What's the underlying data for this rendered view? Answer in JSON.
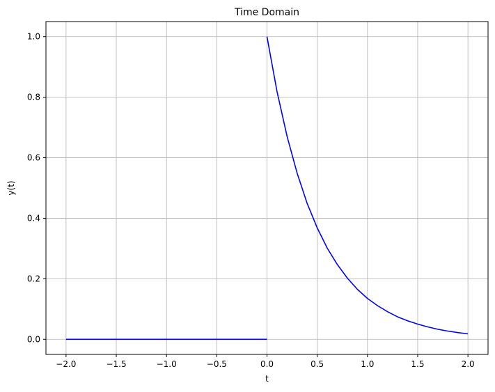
{
  "chart_data": {
    "type": "line",
    "title": "Time Domain",
    "xlabel": "t",
    "ylabel": "y(t)",
    "xlim": [
      -2.2,
      2.2
    ],
    "ylim": [
      -0.05,
      1.05
    ],
    "xticks": [
      -2.0,
      -1.5,
      -1.0,
      -0.5,
      0.0,
      0.5,
      1.0,
      1.5,
      2.0
    ],
    "xtick_labels": [
      "−2.0",
      "−1.5",
      "−1.0",
      "−0.5",
      "0.0",
      "0.5",
      "1.0",
      "1.5",
      "2.0"
    ],
    "yticks": [
      0.0,
      0.2,
      0.4,
      0.6,
      0.8,
      1.0
    ],
    "ytick_labels": [
      "0.0",
      "0.2",
      "0.4",
      "0.6",
      "0.8",
      "1.0"
    ],
    "grid": true,
    "line_color": "#0000ff",
    "grid_color": "#b0b0b0",
    "series": [
      {
        "segments": [
          {
            "x": [
              -2.0,
              0.0
            ],
            "y": [
              0.0,
              0.0
            ]
          },
          {
            "x": [
              0.0,
              0.1,
              0.2,
              0.3,
              0.4,
              0.5,
              0.6,
              0.7,
              0.8,
              0.9,
              1.0,
              1.1,
              1.2,
              1.3,
              1.4,
              1.5,
              1.6,
              1.7,
              1.8,
              1.9,
              2.0
            ],
            "y": [
              1.0,
              0.819,
              0.67,
              0.549,
              0.449,
              0.368,
              0.301,
              0.247,
              0.202,
              0.165,
              0.135,
              0.111,
              0.091,
              0.074,
              0.061,
              0.05,
              0.041,
              0.033,
              0.027,
              0.022,
              0.018
            ]
          }
        ]
      }
    ]
  }
}
